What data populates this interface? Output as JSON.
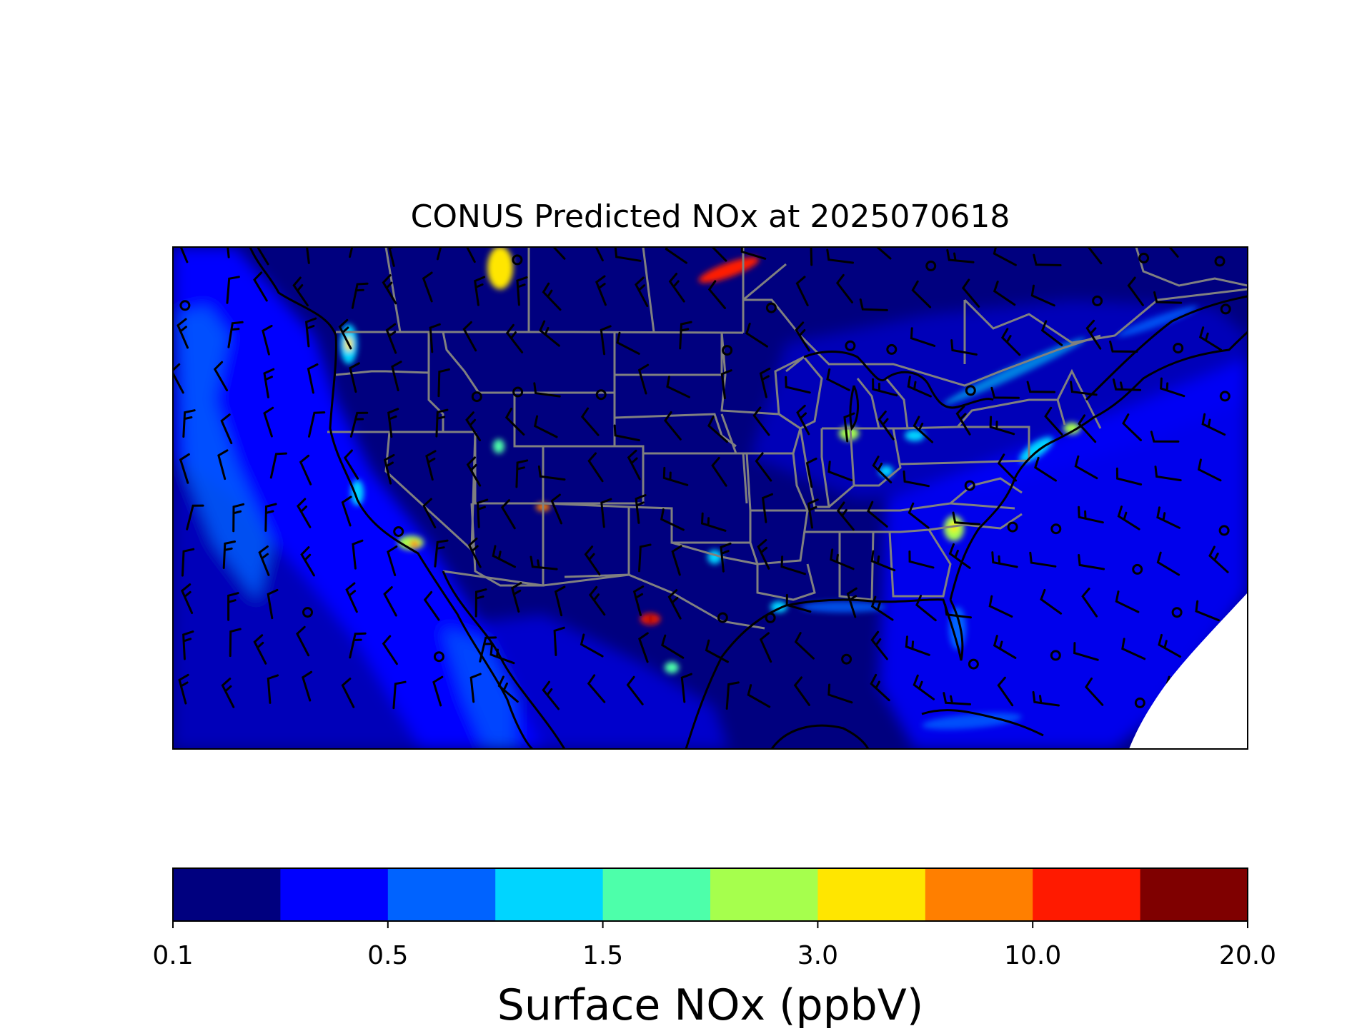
{
  "title": "CONUS Predicted NOx at 2025070618",
  "colorbar": {
    "label": "Surface NOx (ppbV)",
    "tick_labels": [
      "0.1",
      "0.5",
      "1.5",
      "3.0",
      "10.0",
      "20.0"
    ],
    "colors": [
      "#00007f",
      "#0000ff",
      "#0063ff",
      "#00d5ff",
      "#4dffaa",
      "#a6ff4d",
      "#ffe600",
      "#ff7f00",
      "#ff1a00",
      "#7f0000"
    ],
    "levels": 10
  },
  "map": {
    "region": "CONUS",
    "background_color": "#00007f",
    "no_data_color": "#ffffff",
    "state_border_color": "#808080",
    "coastline_color": "#000000",
    "overlay": "wind barbs"
  },
  "chart_data": {
    "type": "heatmap",
    "title": "CONUS Predicted NOx at 2025070618",
    "variable": "Surface NOx",
    "units": "ppbV",
    "colorbar_ticks": [
      0.1,
      0.5,
      1.5,
      3.0,
      10.0,
      20.0
    ],
    "value_range": [
      0.1,
      20.0
    ],
    "xlabel": "",
    "ylabel": "",
    "grid": false
  }
}
